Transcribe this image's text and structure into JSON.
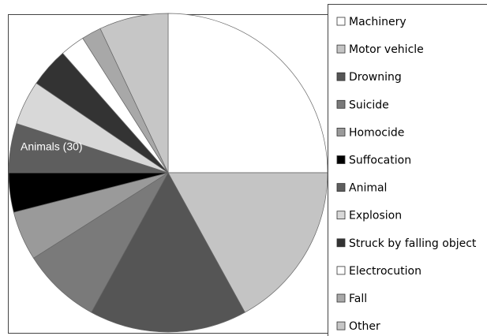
{
  "chart_data": {
    "type": "pie",
    "categories": [
      "Machinery",
      "Motor vehicle",
      "Drowning",
      "Suicide",
      "Homocide",
      "Suffocation",
      "Animal",
      "Explosion",
      "Struck by falling object",
      "Electrocution",
      "Fall",
      "Other"
    ],
    "values": [
      25,
      17,
      16,
      8,
      5,
      4,
      5,
      4.5,
      4,
      2.5,
      2,
      7
    ],
    "colors": [
      "#ffffff",
      "#c4c4c4",
      "#555555",
      "#7a7a7a",
      "#9a9a9a",
      "#000000",
      "#5e5e5e",
      "#d8d8d8",
      "#333333",
      "#ffffff",
      "#a8a8a8",
      "#c6c6c6"
    ],
    "annotation": "Animals (30)",
    "legend": "right"
  }
}
